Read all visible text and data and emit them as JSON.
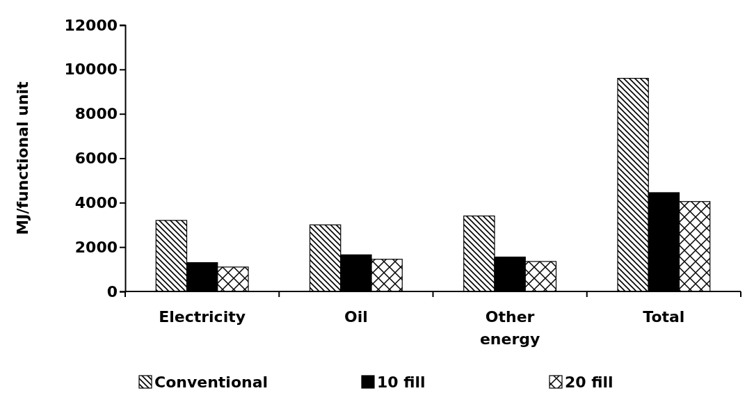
{
  "chart_data": {
    "type": "bar",
    "ylabel": "MJ/functional unit",
    "categories": [
      "Electricity",
      "Oil",
      "Other energy",
      "Total"
    ],
    "series": [
      {
        "name": "Conventional",
        "color": "#000000",
        "values": [
          3200,
          3000,
          3400,
          9600
        ]
      },
      {
        "name": "10 fill",
        "color": "#000000",
        "values": [
          1300,
          1650,
          1550,
          4450
        ]
      },
      {
        "name": "20 fill",
        "color": "#000000",
        "values": [
          1100,
          1450,
          1350,
          4050
        ]
      }
    ],
    "ylim": [
      0,
      12000
    ],
    "yticks": [
      0,
      2000,
      4000,
      6000,
      8000,
      10000,
      12000
    ],
    "legend": "bottom"
  }
}
